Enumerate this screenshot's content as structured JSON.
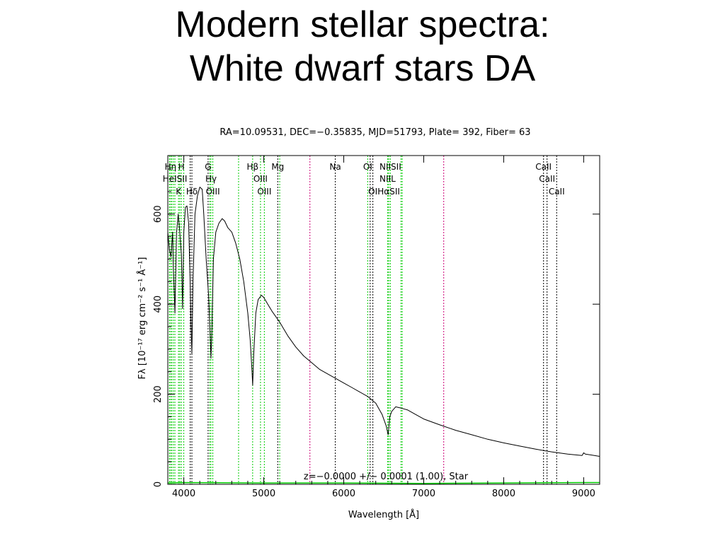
{
  "slide": {
    "title_line1": "Modern stellar spectra:",
    "title_line2": "White dwarf stars DA"
  },
  "chart_data": {
    "type": "line",
    "title": "RA=10.09531, DEC=−0.35835, MJD=51793, Plate= 392, Fiber= 63",
    "xlabel": "Wavelength [Å]",
    "ylabel": "Fλ [10⁻¹⁷ erg cm⁻² s⁻¹ Å⁻¹]",
    "xlim": [
      3800,
      9200
    ],
    "ylim": [
      0,
      730
    ],
    "x_ticks": [
      4000,
      5000,
      6000,
      7000,
      8000,
      9000
    ],
    "y_ticks": [
      0,
      200,
      400,
      600
    ],
    "annotation": "z=−0.0000 +/− 0.0001 (1.00), Star",
    "colors": {
      "flux": "#000000",
      "error": "#00cc00",
      "emission_lines": "#00cc00",
      "absorption_lines": "#000000",
      "sky_lines": "#cc0077"
    },
    "series": [
      {
        "role": "flux",
        "x": [
          3800,
          3820,
          3840,
          3860,
          3870,
          3889,
          3910,
          3930,
          3950,
          3970,
          3985,
          4000,
          4020,
          4040,
          4060,
          4080,
          4090,
          4101,
          4115,
          4140,
          4170,
          4200,
          4230,
          4250,
          4280,
          4310,
          4330,
          4340,
          4350,
          4370,
          4400,
          4440,
          4480,
          4510,
          4550,
          4600,
          4650,
          4700,
          4750,
          4800,
          4830,
          4850,
          4861,
          4875,
          4900,
          4930,
          4970,
          5000,
          5050,
          5100,
          5200,
          5300,
          5400,
          5500,
          5600,
          5700,
          5800,
          5900,
          6000,
          6100,
          6200,
          6300,
          6400,
          6480,
          6530,
          6555,
          6563,
          6575,
          6600,
          6650,
          6700,
          6800,
          6900,
          7000,
          7200,
          7400,
          7600,
          7800,
          8000,
          8200,
          8400,
          8600,
          8800,
          8980,
          9000,
          9020,
          9100,
          9200
        ],
        "y": [
          560,
          520,
          505,
          560,
          480,
          380,
          560,
          600,
          560,
          510,
          390,
          560,
          615,
          618,
          580,
          450,
          350,
          290,
          450,
          600,
          640,
          660,
          655,
          600,
          500,
          420,
          330,
          280,
          330,
          500,
          560,
          580,
          590,
          585,
          570,
          560,
          535,
          500,
          450,
          380,
          320,
          260,
          220,
          290,
          380,
          410,
          420,
          415,
          400,
          385,
          360,
          330,
          305,
          285,
          270,
          255,
          245,
          235,
          225,
          215,
          205,
          195,
          180,
          155,
          130,
          110,
          125,
          150,
          162,
          172,
          170,
          165,
          155,
          145,
          132,
          120,
          110,
          100,
          92,
          85,
          78,
          72,
          67,
          64,
          70,
          67,
          65,
          62
        ]
      },
      {
        "role": "error",
        "x": [
          3800,
          4000,
          5000,
          6000,
          7000,
          8000,
          9000,
          9200
        ],
        "y": [
          3,
          4,
          3,
          3,
          2,
          3,
          4,
          4
        ]
      }
    ],
    "line_markers": [
      {
        "label": "Hη",
        "x": 3835,
        "row": 1,
        "kind": "emission"
      },
      {
        "label": "H",
        "x": 3969,
        "row": 1,
        "kind": "emission"
      },
      {
        "label": "G",
        "x": 4304,
        "row": 1,
        "kind": "absorption"
      },
      {
        "label": "Hβ",
        "x": 4861,
        "row": 1,
        "kind": "emission"
      },
      {
        "label": "Mg",
        "x": 5175,
        "row": 1,
        "kind": "absorption"
      },
      {
        "label": "Na",
        "x": 5894,
        "row": 1,
        "kind": "absorption"
      },
      {
        "label": "OI",
        "x": 6300,
        "row": 1,
        "kind": "emission"
      },
      {
        "label": "NIISII",
        "x": 6583,
        "row": 1,
        "kind": "emission"
      },
      {
        "label": "CaII",
        "x": 8498,
        "row": 1,
        "kind": "absorption"
      },
      {
        "label": "HeISII",
        "x": 3889,
        "row": 2,
        "kind": "emission"
      },
      {
        "label": "Hγ",
        "x": 4340,
        "row": 2,
        "kind": "emission"
      },
      {
        "label": "OIII",
        "x": 4959,
        "row": 2,
        "kind": "emission"
      },
      {
        "label": "NIIL",
        "x": 6548,
        "row": 2,
        "kind": "emission"
      },
      {
        "label": "CaII",
        "x": 8542,
        "row": 2,
        "kind": "absorption"
      },
      {
        "label": "K",
        "x": 3934,
        "row": 3,
        "kind": "emission"
      },
      {
        "label": "Hδ",
        "x": 4101,
        "row": 3,
        "kind": "absorption"
      },
      {
        "label": "OIII",
        "x": 4363,
        "row": 3,
        "kind": "emission"
      },
      {
        "label": "OIII",
        "x": 5007,
        "row": 3,
        "kind": "emission"
      },
      {
        "label": "OI",
        "x": 6364,
        "row": 3,
        "kind": "absorption"
      },
      {
        "label": "HαSII",
        "x": 6563,
        "row": 3,
        "kind": "emission"
      },
      {
        "label": "CaII",
        "x": 8662,
        "row": 3,
        "kind": "absorption"
      }
    ],
    "extra_lines": [
      {
        "x": 3820,
        "kind": "emission"
      },
      {
        "x": 3850,
        "kind": "emission"
      },
      {
        "x": 3870,
        "kind": "emission"
      },
      {
        "x": 3950,
        "kind": "emission"
      },
      {
        "x": 4000,
        "kind": "emission"
      },
      {
        "x": 4325,
        "kind": "emission"
      },
      {
        "x": 4685,
        "kind": "emission"
      },
      {
        "x": 5199,
        "kind": "emission"
      },
      {
        "x": 6563,
        "kind": "emission"
      },
      {
        "x": 6716,
        "kind": "emission"
      },
      {
        "x": 6731,
        "kind": "emission"
      },
      {
        "x": 4080,
        "kind": "absorption"
      },
      {
        "x": 6330,
        "kind": "absorption"
      },
      {
        "x": 5577,
        "kind": "sky"
      },
      {
        "x": 7250,
        "kind": "sky"
      }
    ]
  }
}
